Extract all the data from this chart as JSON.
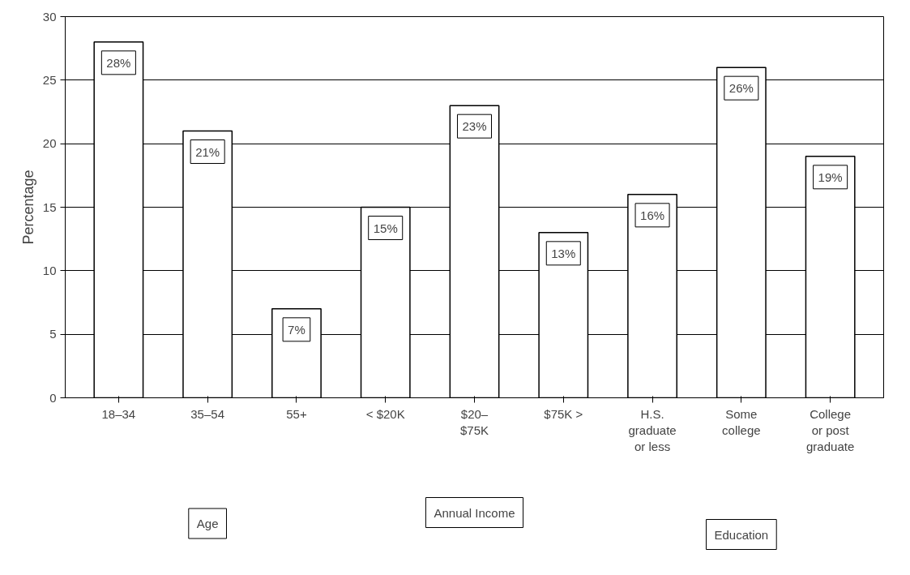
{
  "chart_data": {
    "type": "bar",
    "ylabel": "Percentage",
    "categories": [
      "18–34",
      "35–54",
      "55+",
      "< $20K",
      "$20–\n$75K",
      "$75K >",
      "H.S.\ngraduate\nor less",
      "Some\ncollege",
      "College\nor post\ngraduate"
    ],
    "values": [
      28,
      21,
      7,
      15,
      23,
      13,
      16,
      26,
      19
    ],
    "value_labels": [
      "28%",
      "21%",
      "7%",
      "15%",
      "23%",
      "13%",
      "16%",
      "26%",
      "19%"
    ],
    "color": "#ffffff",
    "ylim": [
      0,
      30
    ],
    "yticks": [
      0,
      5,
      10,
      15,
      20,
      25,
      30
    ],
    "grid": "y",
    "annotations": [
      "Age",
      "Annual Income",
      "Education"
    ]
  }
}
